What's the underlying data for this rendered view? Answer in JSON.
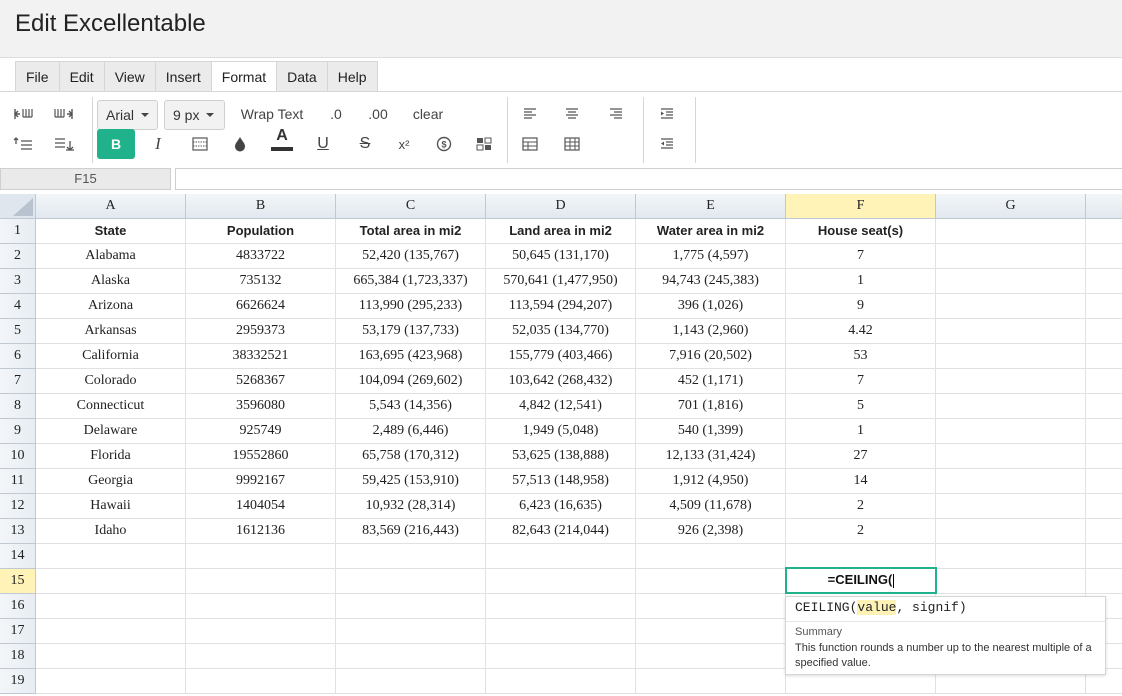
{
  "window": {
    "title": "Edit Excellentable"
  },
  "menu": {
    "items": [
      "File",
      "Edit",
      "View",
      "Insert",
      "Format",
      "Data",
      "Help"
    ],
    "active": "Format"
  },
  "toolbar": {
    "font_family": "Arial",
    "font_size": "9 px",
    "wrap_text": "Wrap Text",
    "decimal_decrease": ".0",
    "decimal_increase": ".00",
    "clear": "clear",
    "bold_label": "B",
    "italic_label": "I",
    "text_color_label": "A",
    "underline_label": "U",
    "strike_label": "S",
    "superscript_label": "x²",
    "colors": {
      "accent": "#20b28a",
      "text_color_bar": "#333333"
    },
    "icons": [
      "insert-column-left-icon",
      "insert-column-right-icon",
      "insert-row-above-icon",
      "insert-row-below-icon",
      "borders-icon",
      "fill-color-icon",
      "currency-icon",
      "conditional-format-icon",
      "align-left-icon",
      "align-center-icon",
      "align-right-icon",
      "merge-cells-icon",
      "unmerge-cells-icon",
      "indent-increase-icon",
      "indent-decrease-icon"
    ]
  },
  "formula_bar": {
    "cell_ref": "F15",
    "value": ""
  },
  "grid": {
    "columns": [
      "A",
      "B",
      "C",
      "D",
      "E",
      "F",
      "G"
    ],
    "selected_column": "F",
    "row_numbers": [
      "1",
      "2",
      "3",
      "4",
      "5",
      "6",
      "7",
      "8",
      "9",
      "10",
      "11",
      "12",
      "13",
      "14",
      "15",
      "16",
      "17",
      "18",
      "19"
    ],
    "selected_row": "15",
    "rows": [
      [
        "State",
        "Population",
        "Total area in mi2",
        "Land area in mi2",
        "Water area in mi2",
        "House seat(s)",
        ""
      ],
      [
        "Alabama",
        "4833722",
        "52,420 (135,767)",
        "50,645 (131,170)",
        "1,775 (4,597)",
        "7",
        ""
      ],
      [
        "Alaska",
        "735132",
        "665,384 (1,723,337)",
        "570,641 (1,477,950)",
        "94,743 (245,383)",
        "1",
        ""
      ],
      [
        "Arizona",
        "6626624",
        "113,990 (295,233)",
        "113,594 (294,207)",
        "396 (1,026)",
        "9",
        ""
      ],
      [
        "Arkansas",
        "2959373",
        "53,179 (137,733)",
        "52,035 (134,770)",
        "1,143 (2,960)",
        "4.42",
        ""
      ],
      [
        "California",
        "38332521",
        "163,695 (423,968)",
        "155,779 (403,466)",
        "7,916 (20,502)",
        "53",
        ""
      ],
      [
        "Colorado",
        "5268367",
        "104,094 (269,602)",
        "103,642 (268,432)",
        "452 (1,171)",
        "7",
        ""
      ],
      [
        "Connecticut",
        "3596080",
        "5,543 (14,356)",
        "4,842 (12,541)",
        "701 (1,816)",
        "5",
        ""
      ],
      [
        "Delaware",
        "925749",
        "2,489 (6,446)",
        "1,949 (5,048)",
        "540 (1,399)",
        "1",
        ""
      ],
      [
        "Florida",
        "19552860",
        "65,758 (170,312)",
        "53,625 (138,888)",
        "12,133 (31,424)",
        "27",
        ""
      ],
      [
        "Georgia",
        "9992167",
        "59,425 (153,910)",
        "57,513 (148,958)",
        "1,912 (4,950)",
        "14",
        ""
      ],
      [
        "Hawaii",
        "1404054",
        "10,932 (28,314)",
        "6,423 (16,635)",
        "4,509 (11,678)",
        "2",
        ""
      ],
      [
        "Idaho",
        "1612136",
        "83,569 (216,443)",
        "82,643 (214,044)",
        "926 (2,398)",
        "2",
        ""
      ]
    ],
    "editing_cell": {
      "ref": "F15",
      "text": "=CEILING("
    }
  },
  "tooltip": {
    "fn_name": "CEILING(",
    "arg1": "value",
    "rest": ", signif)",
    "summary_label": "Summary",
    "description": "This function rounds a number up to the nearest multiple of a specified value."
  }
}
